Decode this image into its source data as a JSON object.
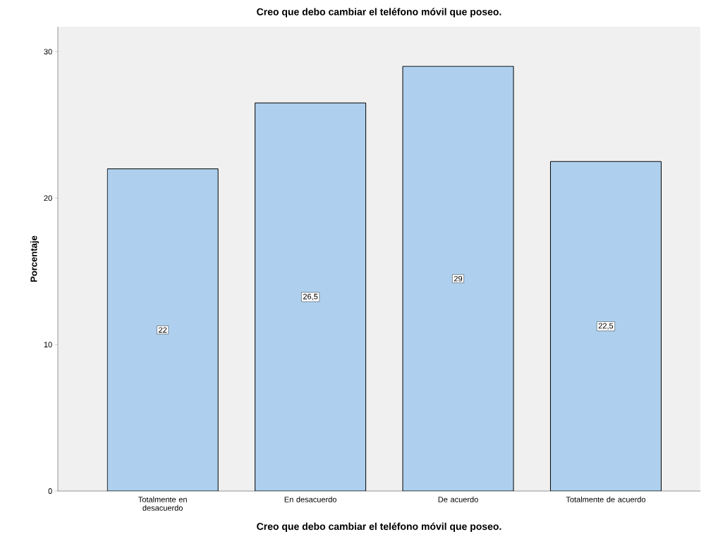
{
  "chart_data": {
    "type": "bar",
    "title": "Creo que debo cambiar el teléfono móvil que poseo.",
    "xlabel": "Creo que debo cambiar el teléfono móvil que poseo.",
    "ylabel": "Porcentaje",
    "categories": [
      "Totalmente en desacuerdo",
      "En desacuerdo",
      "De acuerdo",
      "Totalmente de acuerdo"
    ],
    "values": [
      22,
      26.5,
      29,
      22.5
    ],
    "value_labels": [
      "22",
      "26,5",
      "29",
      "22,5"
    ],
    "color": "#aed0ee",
    "ylim": [
      0,
      31.7
    ],
    "yticks": [
      0,
      10,
      20,
      30
    ],
    "grid": false
  }
}
